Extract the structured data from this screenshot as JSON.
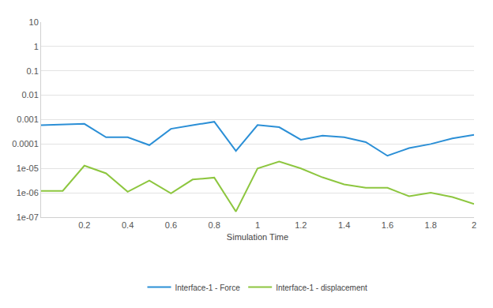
{
  "chart_data": {
    "type": "line",
    "x_label": "Simulation Time",
    "x": [
      0,
      0.1,
      0.2,
      0.3,
      0.4,
      0.5,
      0.6,
      0.7,
      0.8,
      0.9,
      1.0,
      1.1,
      1.2,
      1.3,
      1.4,
      1.5,
      1.6,
      1.7,
      1.8,
      1.9,
      2.0
    ],
    "series": [
      {
        "name": "Interface-1 - Force",
        "color": "#2b8fd6",
        "values": [
          0.00059,
          0.00062,
          0.00067,
          0.00019,
          0.00019,
          9e-05,
          0.00042,
          0.00059,
          0.00082,
          5.2e-05,
          0.0006,
          0.00049,
          0.00015,
          0.00022,
          0.00019,
          0.00012,
          3.3e-05,
          6.8e-05,
          0.0001,
          0.00017,
          0.00024
        ]
      },
      {
        "name": "Interface-1 - displacement",
        "color": "#8dc63f",
        "values": [
          1.2e-06,
          1.2e-06,
          1.3e-05,
          6.3e-06,
          1.1e-06,
          3.2e-06,
          9.5e-07,
          3.5e-06,
          4.2e-06,
          1.7e-07,
          1e-05,
          1.9e-05,
          1e-05,
          4.3e-06,
          2.2e-06,
          1.6e-06,
          1.6e-06,
          7.2e-07,
          1e-06,
          6.7e-07,
          3.5e-07
        ]
      }
    ],
    "xlim": [
      0,
      2
    ],
    "xticks": [
      0.2,
      0.4,
      0.6,
      0.8,
      1,
      1.2,
      1.4,
      1.6,
      1.8,
      2
    ],
    "ylim": [
      1e-07,
      10
    ],
    "yticks": [
      {
        "value": 1e-07,
        "label": "1e-07"
      },
      {
        "value": 1e-06,
        "label": "1e-06"
      },
      {
        "value": 1e-05,
        "label": "1e-05"
      },
      0.0001,
      0.001,
      0.01,
      0.1,
      1,
      10
    ],
    "log": "y",
    "grid": "y",
    "legend": "bottom"
  }
}
